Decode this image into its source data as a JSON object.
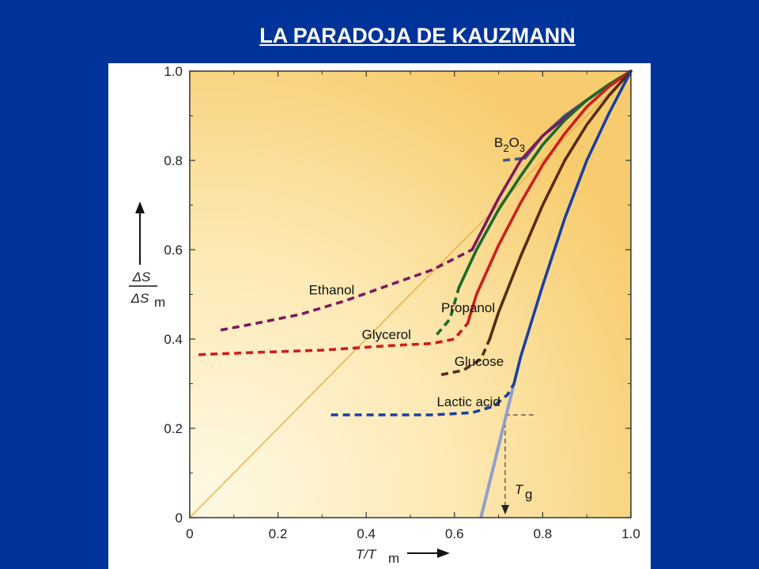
{
  "slide": {
    "title": "LA PARADOJA DE KAUZMANN"
  },
  "chart_data": {
    "type": "line",
    "title": "",
    "xlabel": {
      "main": "T/T",
      "sub": "m"
    },
    "ylabel": {
      "num": "ΔS",
      "den": "ΔS",
      "den_sub": "m"
    },
    "xlim": [
      0,
      1.0
    ],
    "ylim": [
      0,
      1.0
    ],
    "x_ticks": [
      {
        "value": 0,
        "label": "0"
      },
      {
        "value": 0.2,
        "label": "0.2"
      },
      {
        "value": 0.4,
        "label": "0.4"
      },
      {
        "value": 0.6,
        "label": "0.6"
      },
      {
        "value": 0.8,
        "label": "0.8"
      },
      {
        "value": 1.0,
        "label": "1.0"
      }
    ],
    "y_ticks": [
      {
        "value": 0,
        "label": "0"
      },
      {
        "value": 0.2,
        "label": "0.2"
      },
      {
        "value": 0.4,
        "label": "0.4"
      },
      {
        "value": 0.6,
        "label": "0.6"
      },
      {
        "value": 0.8,
        "label": "0.8"
      },
      {
        "value": 1.0,
        "label": "1.0"
      }
    ],
    "reference_line": {
      "points": [
        [
          0,
          0
        ],
        [
          1.0,
          1.0
        ]
      ],
      "color": "#e8b24a"
    },
    "series": [
      {
        "name": "B2O3",
        "label_main": "B",
        "label_sub1": "2",
        "label_mid": "O",
        "label_sub2": "3",
        "color": "#3e5a8c",
        "solid": [
          [
            0.76,
            0.805
          ],
          [
            0.8,
            0.855
          ],
          [
            0.85,
            0.9
          ],
          [
            0.9,
            0.935
          ],
          [
            0.95,
            0.97
          ],
          [
            1.0,
            1.0
          ]
        ],
        "dashed": [
          [
            0.71,
            0.8
          ],
          [
            0.76,
            0.805
          ]
        ],
        "label_at": [
          0.69,
          0.83
        ]
      },
      {
        "name": "Ethanol",
        "color": "#7b1a5e",
        "solid": [
          [
            0.64,
            0.6
          ],
          [
            0.7,
            0.715
          ],
          [
            0.75,
            0.8
          ],
          [
            0.8,
            0.855
          ],
          [
            0.85,
            0.895
          ],
          [
            0.9,
            0.935
          ],
          [
            0.95,
            0.97
          ],
          [
            1.0,
            1.0
          ]
        ],
        "dashed": [
          [
            0.07,
            0.42
          ],
          [
            0.15,
            0.435
          ],
          [
            0.25,
            0.455
          ],
          [
            0.35,
            0.485
          ],
          [
            0.45,
            0.52
          ],
          [
            0.55,
            0.555
          ],
          [
            0.64,
            0.6
          ]
        ],
        "label_at": [
          0.27,
          0.5
        ]
      },
      {
        "name": "Propanol",
        "color": "#1a6a2a",
        "solid": [
          [
            0.61,
            0.515
          ],
          [
            0.65,
            0.6
          ],
          [
            0.7,
            0.69
          ],
          [
            0.75,
            0.765
          ],
          [
            0.8,
            0.835
          ],
          [
            0.85,
            0.89
          ],
          [
            0.9,
            0.935
          ],
          [
            0.95,
            0.97
          ],
          [
            1.0,
            1.0
          ]
        ],
        "dashed": [
          [
            0.56,
            0.41
          ],
          [
            0.59,
            0.445
          ],
          [
            0.61,
            0.515
          ]
        ],
        "label_at": [
          0.57,
          0.46
        ]
      },
      {
        "name": "Glycerol",
        "color": "#cc1f1f",
        "solid": [
          [
            0.63,
            0.435
          ],
          [
            0.65,
            0.5
          ],
          [
            0.7,
            0.61
          ],
          [
            0.75,
            0.705
          ],
          [
            0.8,
            0.79
          ],
          [
            0.85,
            0.86
          ],
          [
            0.9,
            0.92
          ],
          [
            0.95,
            0.965
          ],
          [
            1.0,
            1.0
          ]
        ],
        "dashed": [
          [
            0.02,
            0.365
          ],
          [
            0.15,
            0.37
          ],
          [
            0.3,
            0.375
          ],
          [
            0.45,
            0.385
          ],
          [
            0.55,
            0.39
          ],
          [
            0.6,
            0.4
          ],
          [
            0.63,
            0.435
          ]
        ],
        "label_at": [
          0.39,
          0.4
        ]
      },
      {
        "name": "Glucose",
        "color": "#5a2a10",
        "solid": [
          [
            0.68,
            0.4
          ],
          [
            0.7,
            0.46
          ],
          [
            0.75,
            0.585
          ],
          [
            0.8,
            0.7
          ],
          [
            0.85,
            0.8
          ],
          [
            0.9,
            0.88
          ],
          [
            0.95,
            0.945
          ],
          [
            1.0,
            1.0
          ]
        ],
        "dashed": [
          [
            0.57,
            0.32
          ],
          [
            0.62,
            0.33
          ],
          [
            0.66,
            0.355
          ],
          [
            0.68,
            0.4
          ]
        ],
        "label_at": [
          0.6,
          0.34
        ]
      },
      {
        "name": "Lactic acid",
        "color": "#1a3fa0",
        "solid": [
          [
            0.735,
            0.3
          ],
          [
            0.75,
            0.36
          ],
          [
            0.8,
            0.52
          ],
          [
            0.85,
            0.67
          ],
          [
            0.9,
            0.8
          ],
          [
            0.95,
            0.905
          ],
          [
            1.0,
            1.0
          ]
        ],
        "dashed": [
          [
            0.32,
            0.23
          ],
          [
            0.45,
            0.23
          ],
          [
            0.55,
            0.23
          ],
          [
            0.64,
            0.235
          ],
          [
            0.69,
            0.25
          ],
          [
            0.72,
            0.275
          ],
          [
            0.735,
            0.3
          ]
        ],
        "label_at": [
          0.56,
          0.25
        ]
      }
    ],
    "extrapolation": {
      "points": [
        [
          0.735,
          0.3
        ],
        [
          0.66,
          0.0
        ]
      ],
      "color": "#8fa0cc"
    },
    "tg_marker": {
      "label_main": "T",
      "label_sub": "g",
      "x": 0.715,
      "y": 0.23,
      "h_line": [
        0.715,
        0.78
      ]
    }
  }
}
